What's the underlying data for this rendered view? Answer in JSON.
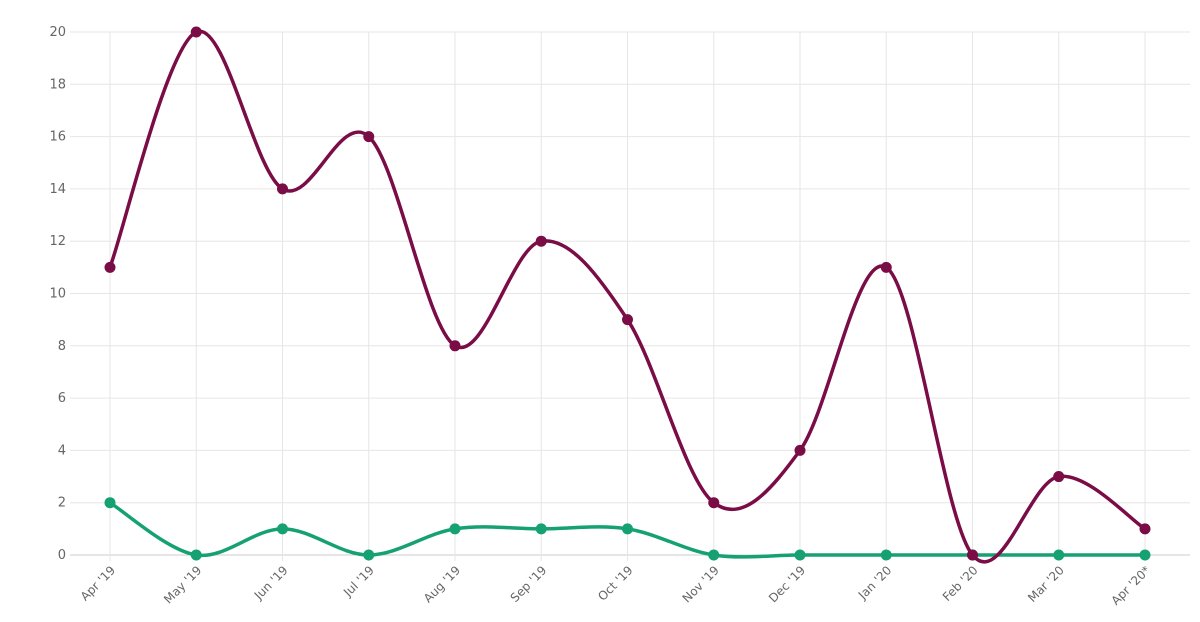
{
  "chart_data": {
    "type": "line",
    "categories": [
      "Apr '19",
      "May '19",
      "Jun '19",
      "Jul '19",
      "Aug '19",
      "Sep '19",
      "Oct '19",
      "Nov '19",
      "Dec '19",
      "Jan '20",
      "Feb '20",
      "Mar '20",
      "Apr '20*"
    ],
    "series": [
      {
        "color": "#7a0c46",
        "values": [
          11,
          20,
          14,
          16,
          8,
          12,
          9,
          2,
          4,
          11,
          0,
          3,
          1
        ]
      },
      {
        "color": "#16a173",
        "values": [
          2,
          0,
          1,
          0,
          1,
          1,
          1,
          0,
          0,
          0,
          0,
          0,
          0
        ]
      }
    ],
    "ylim": [
      0,
      20
    ],
    "yticks": [
      0,
      2,
      4,
      6,
      8,
      10,
      12,
      14,
      16,
      18,
      20
    ],
    "grid": true,
    "smooth": true
  }
}
